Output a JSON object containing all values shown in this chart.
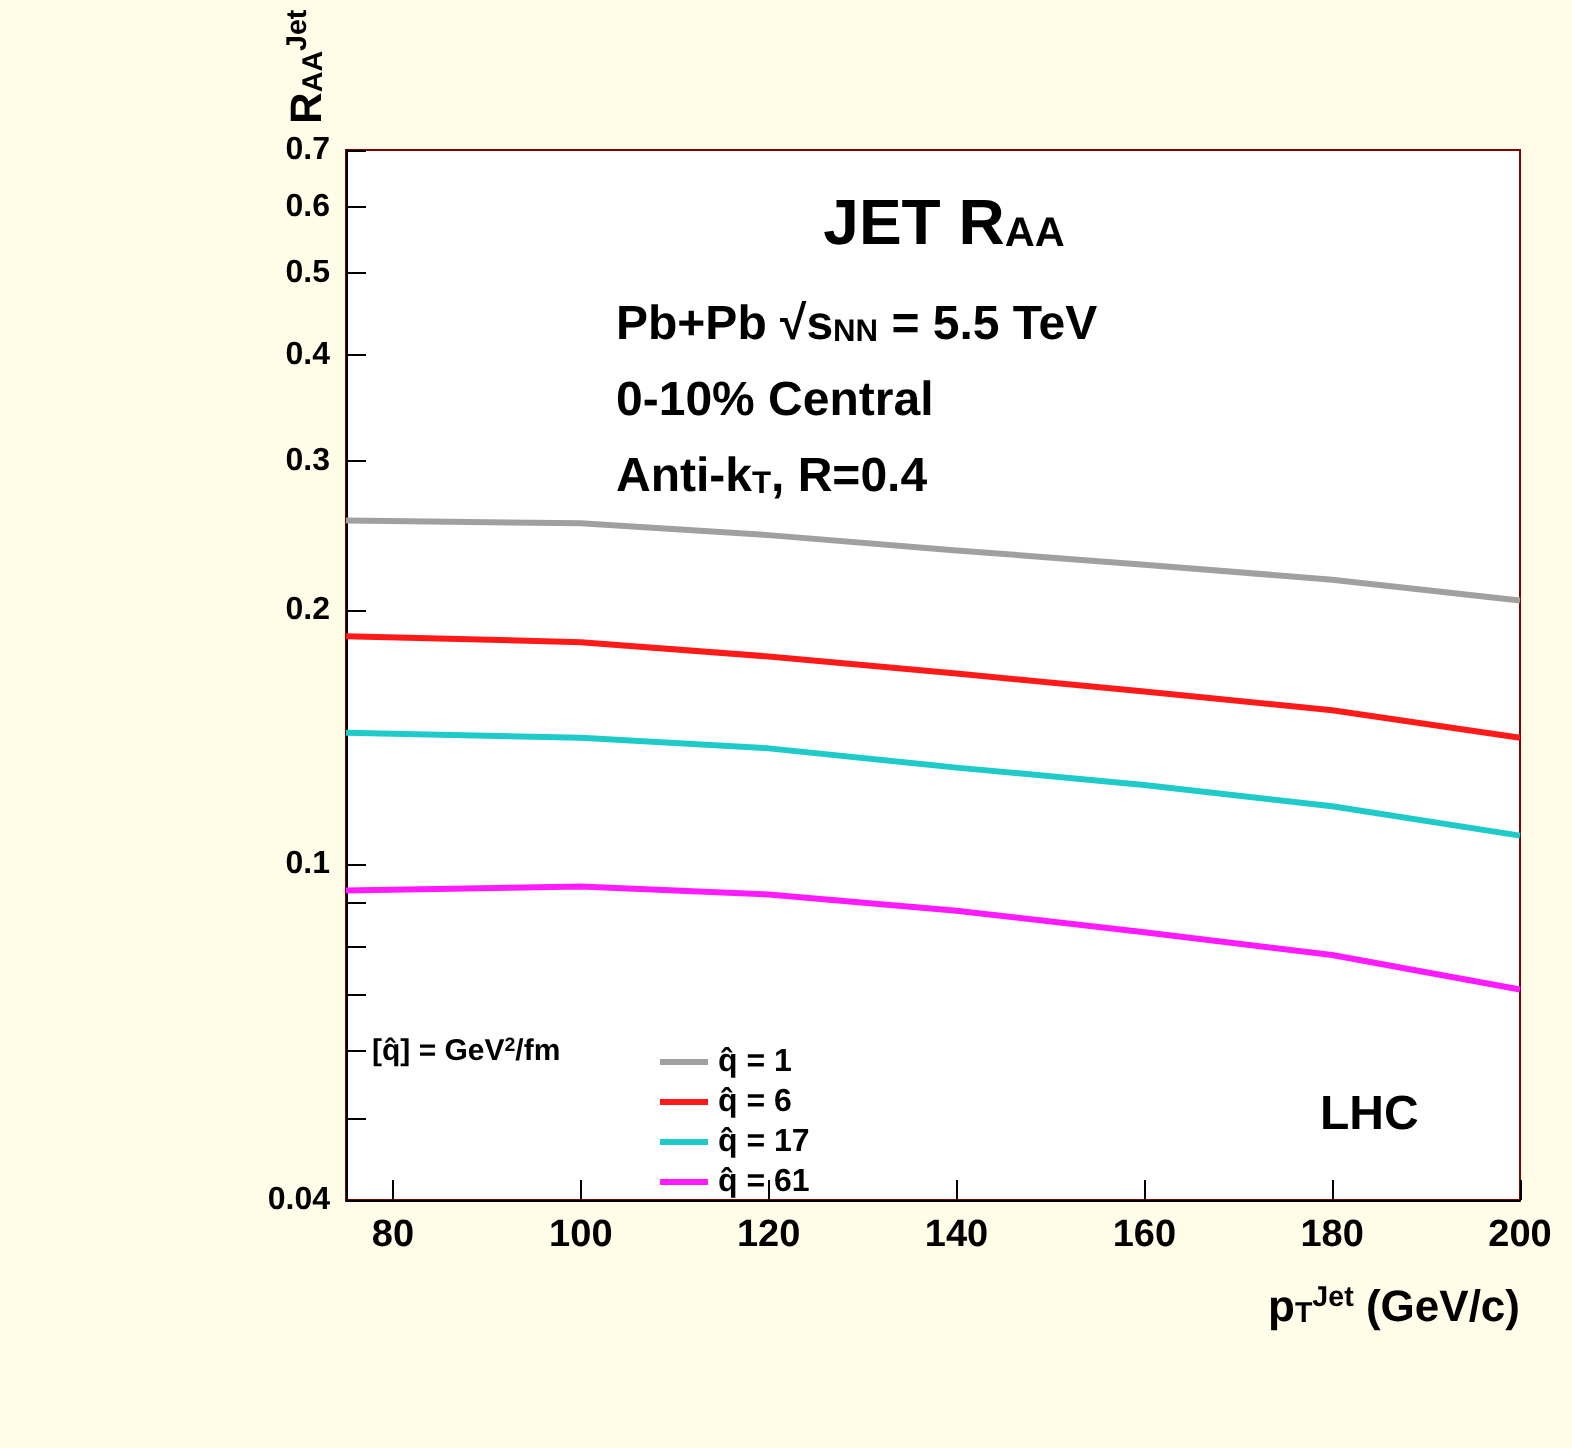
{
  "chart_data": {
    "type": "line",
    "title": "JET R$_{AA}$",
    "xlabel": "p$_{T}$$^{Jet}$ (GeV/c)",
    "ylabel": "R$_{AA}$$^{Jet}$",
    "legend_title": "[q̂] = GeV$^{2}$/fm",
    "annotations": [
      "Pb+Pb √s$_{NN}$ = 5.5 TeV",
      "0-10% Central",
      "Anti-k$_{T}$, R=0.4",
      "LHC"
    ],
    "x": [
      75,
      100,
      120,
      140,
      160,
      180,
      200
    ],
    "series": [
      {
        "name": "q̂ = 1",
        "color": "#a0a0a0",
        "values": [
          0.255,
          0.253,
          0.245,
          0.235,
          0.226,
          0.217,
          0.205
        ]
      },
      {
        "name": "q̂ = 6",
        "color": "#ff1a1a",
        "values": [
          0.186,
          0.183,
          0.176,
          0.168,
          0.16,
          0.152,
          0.141
        ]
      },
      {
        "name": "q̂ = 17",
        "color": "#1ecbc8",
        "values": [
          0.143,
          0.141,
          0.137,
          0.13,
          0.124,
          0.117,
          0.108
        ]
      },
      {
        "name": "q̂ = 61",
        "color": "#ff1aff",
        "values": [
          0.093,
          0.094,
          0.092,
          0.088,
          0.083,
          0.078,
          0.071
        ]
      }
    ],
    "xlim": [
      75,
      200
    ],
    "xticks": [
      80,
      100,
      120,
      140,
      160,
      180,
      200
    ],
    "ylim": [
      0.04,
      0.7
    ],
    "yticks": [
      0.04,
      {
        "value": 0.05,
        "label": null
      },
      {
        "value": 0.06,
        "label": null
      },
      {
        "value": 0.07,
        "label": null
      },
      {
        "value": 0.08,
        "label": null
      },
      {
        "value": 0.09,
        "label": null
      },
      0.1,
      0.2,
      0.3,
      0.4,
      0.5,
      0.6,
      0.7
    ],
    "log": "y",
    "grid": false,
    "legend": "bottom left",
    "marker": "none",
    "line_style": "solid"
  }
}
